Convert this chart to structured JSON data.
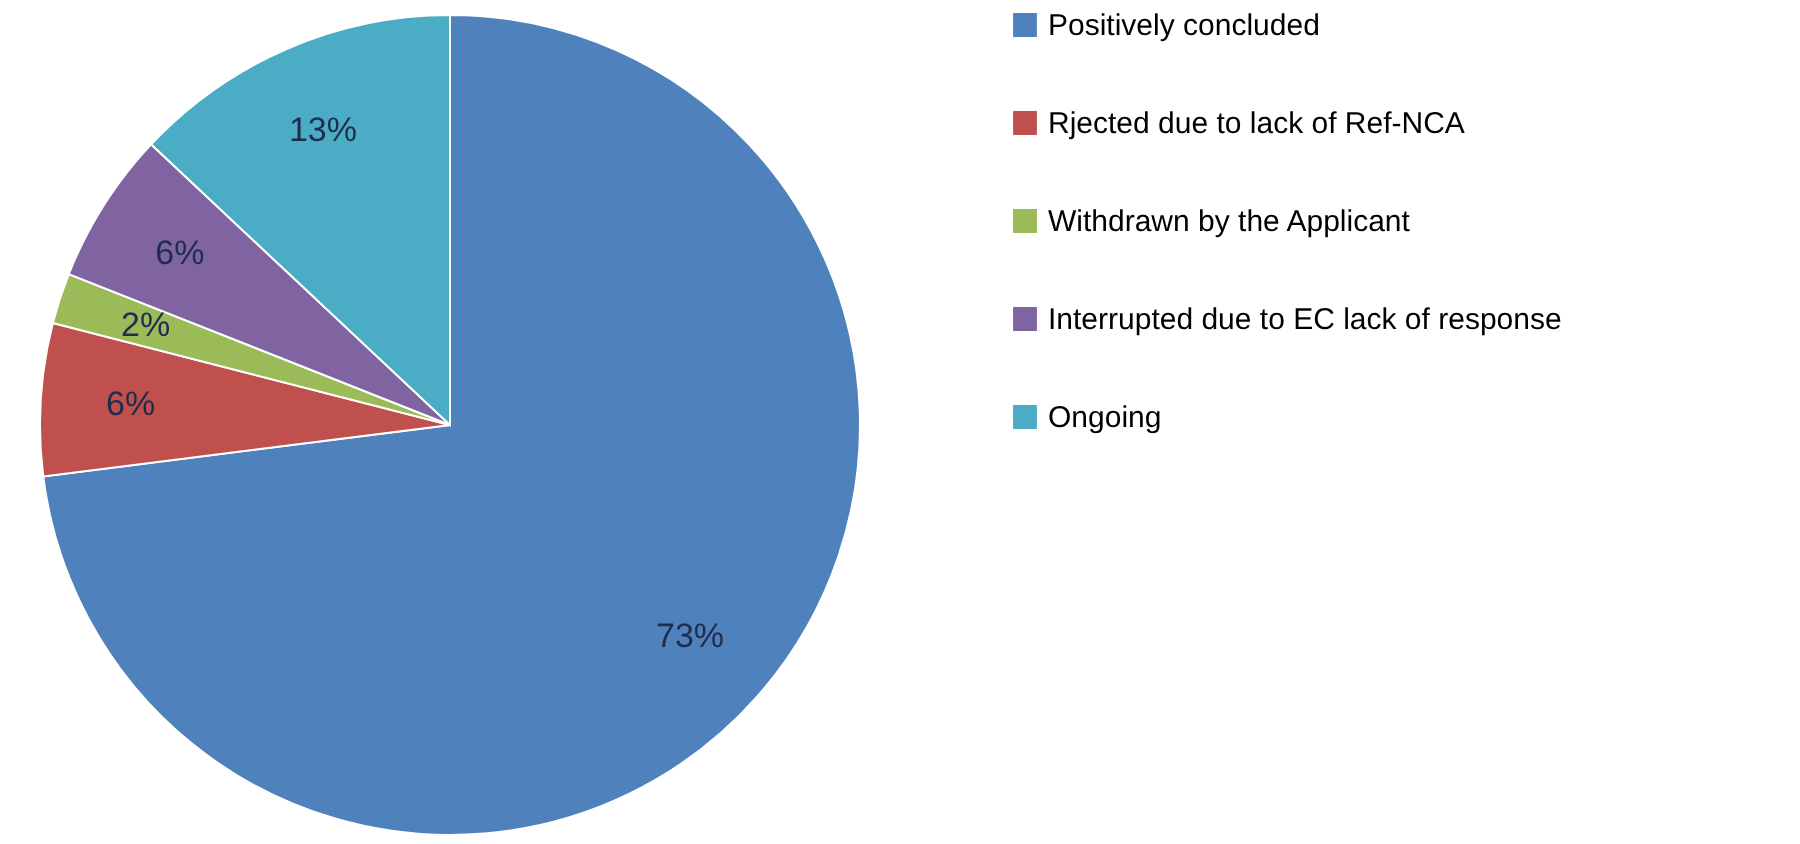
{
  "chart_data": {
    "type": "pie",
    "categories": [
      "Positively concluded",
      "Rjected due to lack of Ref-NCA",
      "Withdrawn by the Applicant",
      "Interrupted due to EC lack of response",
      "Ongoing"
    ],
    "values": [
      73,
      6,
      2,
      6,
      13
    ],
    "value_labels": [
      "73%",
      "6%",
      "2%",
      "6%",
      "13%"
    ],
    "colors": [
      "#4f81bd",
      "#c0504d",
      "#9bbb59",
      "#8064a2",
      "#4bacc6"
    ],
    "legend": "right"
  }
}
